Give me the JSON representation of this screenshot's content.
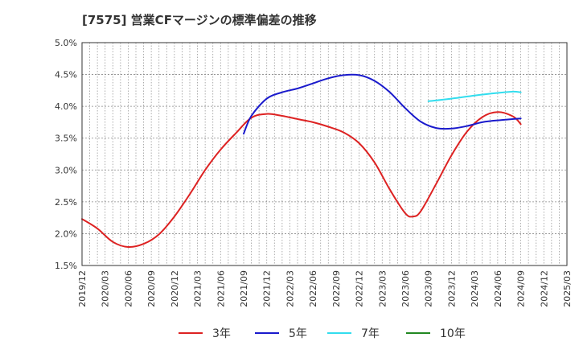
{
  "chart_data": {
    "type": "line",
    "title": "[7575]  営業CFマージンの標準偏差の推移",
    "xlabel": "",
    "ylabel": "",
    "ylim": [
      1.5,
      5.0
    ],
    "yticks": [
      "1.5%",
      "2.0%",
      "2.5%",
      "3.0%",
      "3.5%",
      "4.0%",
      "4.5%",
      "5.0%"
    ],
    "yvalues": [
      1.5,
      2.0,
      2.5,
      3.0,
      3.5,
      4.0,
      4.5,
      5.0
    ],
    "xticks": [
      "2019/12",
      "2020/03",
      "2020/06",
      "2020/09",
      "2020/12",
      "2021/03",
      "2021/06",
      "2021/09",
      "2021/12",
      "2022/03",
      "2022/06",
      "2022/09",
      "2022/12",
      "2023/03",
      "2023/06",
      "2023/09",
      "2023/12",
      "2024/03",
      "2024/06",
      "2024/09",
      "2024/12",
      "2025/03"
    ],
    "grid": true,
    "legend_position": "bottom",
    "series": [
      {
        "name": "3年",
        "color": "#dd2222",
        "points": [
          [
            "2019/12",
            2.23
          ],
          [
            "2020/02",
            2.08
          ],
          [
            "2020/04",
            1.87
          ],
          [
            "2020/06",
            1.79
          ],
          [
            "2020/08",
            1.84
          ],
          [
            "2020/10",
            1.99
          ],
          [
            "2020/12",
            2.27
          ],
          [
            "2021/02",
            2.62
          ],
          [
            "2021/04",
            3.0
          ],
          [
            "2021/06",
            3.32
          ],
          [
            "2021/08",
            3.58
          ],
          [
            "2021/10",
            3.82
          ],
          [
            "2021/12",
            3.88
          ],
          [
            "2022/02",
            3.85
          ],
          [
            "2022/04",
            3.8
          ],
          [
            "2022/06",
            3.75
          ],
          [
            "2022/08",
            3.68
          ],
          [
            "2022/10",
            3.59
          ],
          [
            "2022/12",
            3.42
          ],
          [
            "2023/02",
            3.12
          ],
          [
            "2023/04",
            2.69
          ],
          [
            "2023/06",
            2.32
          ],
          [
            "2023/07",
            2.27
          ],
          [
            "2023/08",
            2.35
          ],
          [
            "2023/10",
            2.78
          ],
          [
            "2023/12",
            3.23
          ],
          [
            "2024/02",
            3.6
          ],
          [
            "2024/04",
            3.83
          ],
          [
            "2024/06",
            3.91
          ],
          [
            "2024/08",
            3.84
          ],
          [
            "2024/09",
            3.72
          ]
        ]
      },
      {
        "name": "5年",
        "color": "#1a1acc",
        "points": [
          [
            "2021/09",
            3.57
          ],
          [
            "2021/10",
            3.85
          ],
          [
            "2021/12",
            4.12
          ],
          [
            "2022/02",
            4.22
          ],
          [
            "2022/04",
            4.28
          ],
          [
            "2022/06",
            4.36
          ],
          [
            "2022/08",
            4.44
          ],
          [
            "2022/10",
            4.49
          ],
          [
            "2022/12",
            4.49
          ],
          [
            "2023/02",
            4.4
          ],
          [
            "2023/04",
            4.22
          ],
          [
            "2023/06",
            3.97
          ],
          [
            "2023/08",
            3.76
          ],
          [
            "2023/10",
            3.66
          ],
          [
            "2023/12",
            3.65
          ],
          [
            "2024/02",
            3.69
          ],
          [
            "2024/04",
            3.75
          ],
          [
            "2024/06",
            3.78
          ],
          [
            "2024/09",
            3.81
          ]
        ]
      },
      {
        "name": "7年",
        "color": "#33ddee",
        "points": [
          [
            "2023/09",
            4.08
          ],
          [
            "2023/12",
            4.12
          ],
          [
            "2024/03",
            4.17
          ],
          [
            "2024/06",
            4.21
          ],
          [
            "2024/08",
            4.23
          ],
          [
            "2024/09",
            4.22
          ]
        ]
      },
      {
        "name": "10年",
        "color": "#228822",
        "points": []
      }
    ]
  }
}
